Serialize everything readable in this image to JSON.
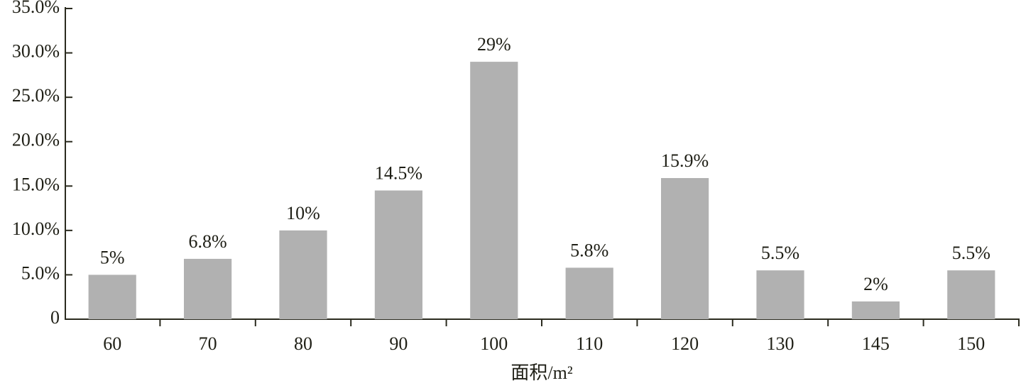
{
  "chart_data": {
    "type": "bar",
    "x_label": "面积/m²",
    "categories": [
      "60",
      "70",
      "80",
      "90",
      "100",
      "110",
      "120",
      "130",
      "145",
      "150"
    ],
    "values": [
      5,
      6.8,
      10,
      14.5,
      29,
      5.8,
      15.9,
      5.5,
      2,
      5.5
    ],
    "value_labels": [
      "5%",
      "6.8%",
      "10%",
      "14.5%",
      "29%",
      "5.8%",
      "15.9%",
      "5.5%",
      "2%",
      "5.5%"
    ],
    "color": "#b1b1b1",
    "ylim": [
      0,
      35
    ],
    "yticks": [
      0,
      {
        "value": 5,
        "label": "5.0%"
      },
      {
        "value": 10,
        "label": "10.0%"
      },
      {
        "value": 15,
        "label": "15.0%"
      },
      {
        "value": 20,
        "label": "20.0%"
      },
      {
        "value": 25,
        "label": "25.0%"
      },
      {
        "value": 30,
        "label": "30.0%"
      },
      {
        "value": 35,
        "label": "35.0%"
      }
    ],
    "grid": false
  }
}
